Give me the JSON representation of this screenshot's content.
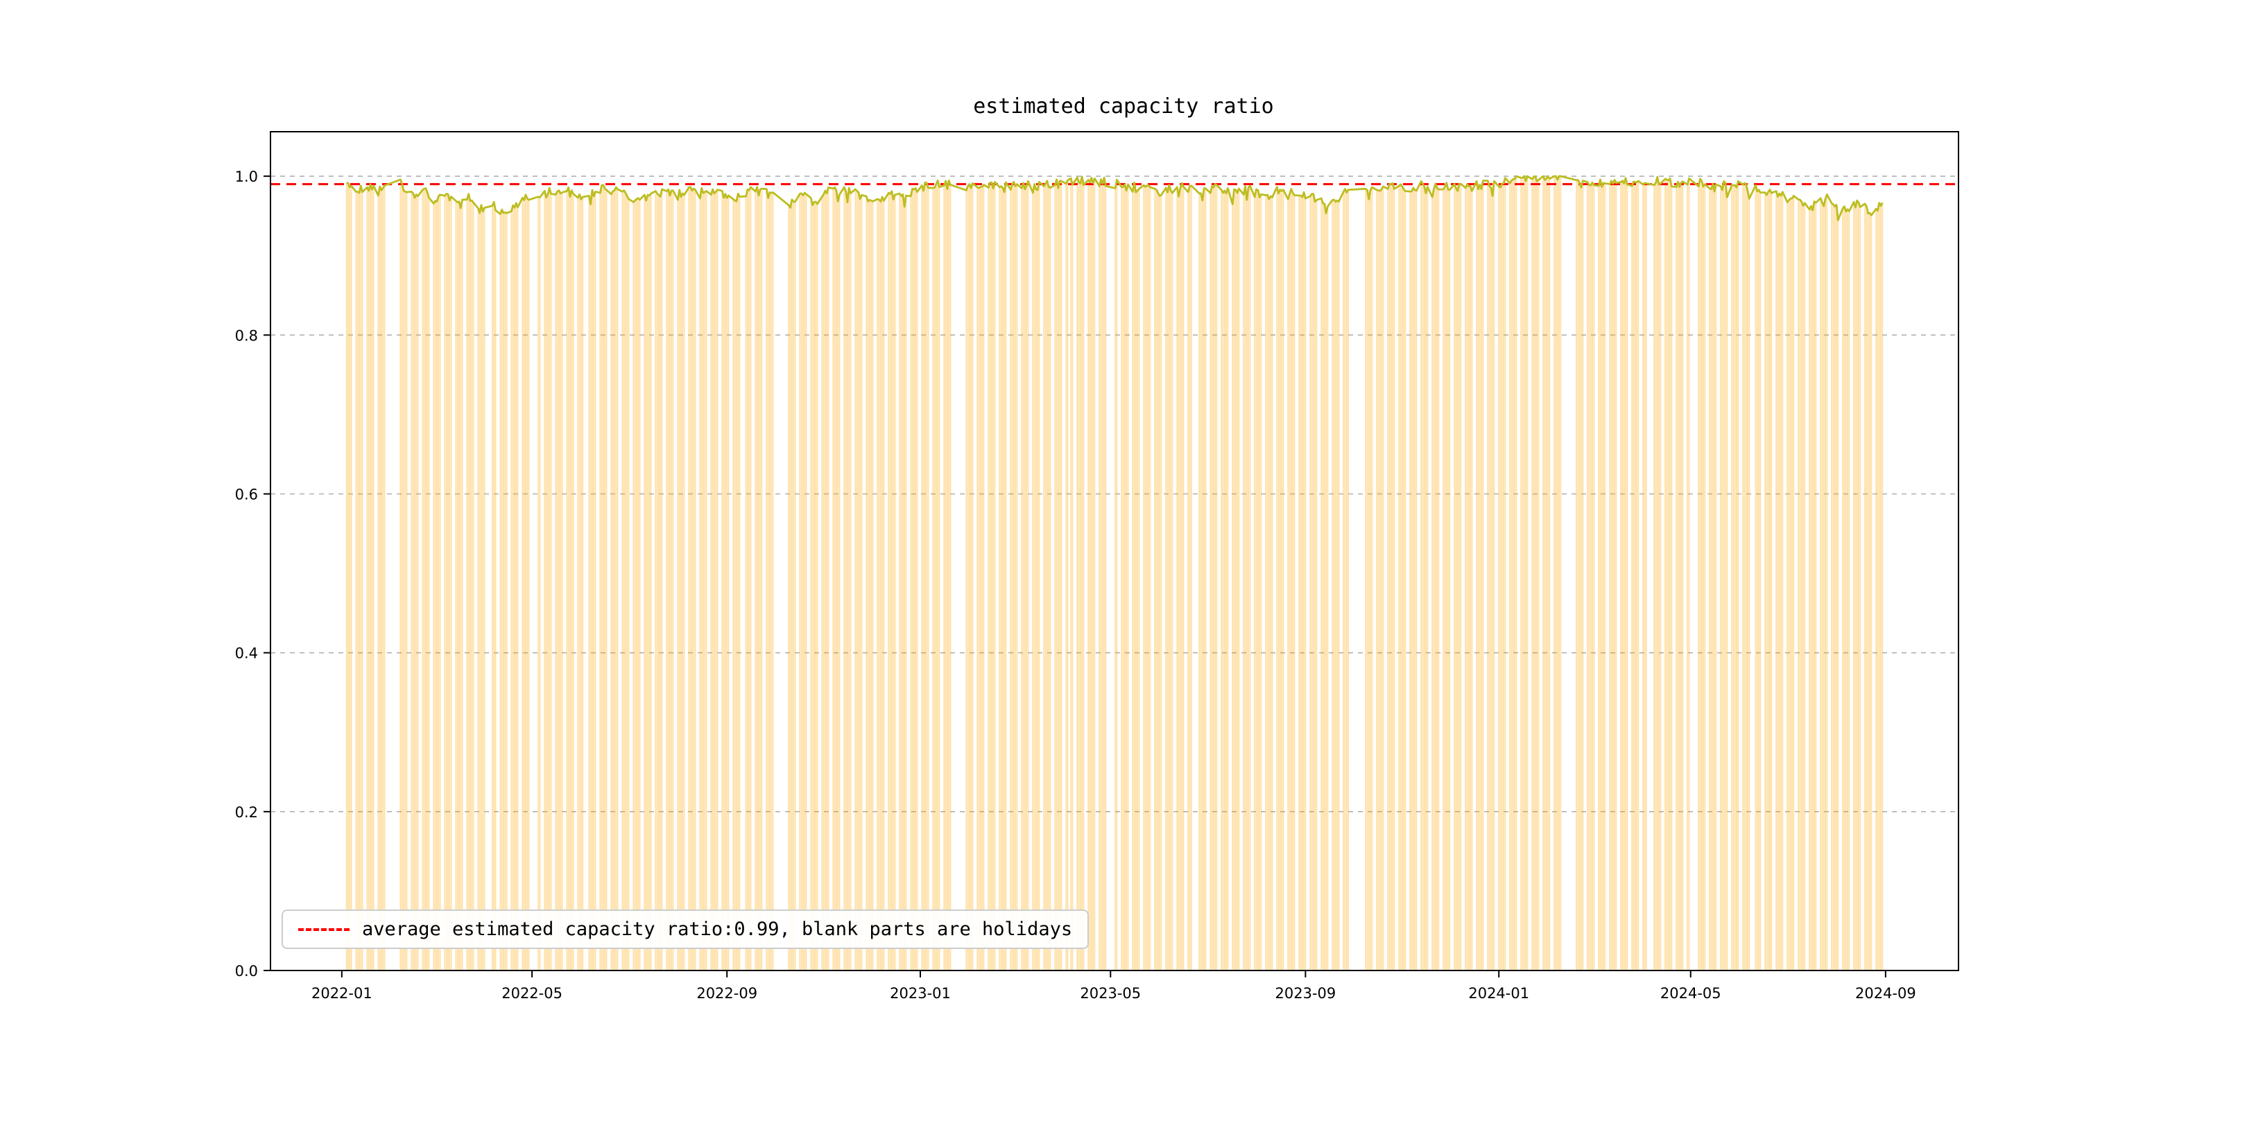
{
  "figure": {
    "background": "#ffffff"
  },
  "chart_data": {
    "type": "bar",
    "title": "estimated capacity ratio",
    "series_name": "estimated capacity ratio",
    "legend": {
      "position": "lower left",
      "entries": [
        {
          "label": "average estimated capacity ratio:0.99, blank parts are holidays",
          "symbol": "dashed-line",
          "color": "#ff0000"
        }
      ]
    },
    "average_line": {
      "value": 0.99,
      "color": "#ff0000",
      "style": "dashed"
    },
    "x_axis": {
      "domain": [
        "2021-11-17",
        "2024-10-17"
      ],
      "ticks": [
        {
          "date": "2022-01-01",
          "label": "2022-01"
        },
        {
          "date": "2022-05-01",
          "label": "2022-05"
        },
        {
          "date": "2022-09-01",
          "label": "2022-09"
        },
        {
          "date": "2023-01-01",
          "label": "2023-01"
        },
        {
          "date": "2023-05-01",
          "label": "2023-05"
        },
        {
          "date": "2023-09-01",
          "label": "2023-09"
        },
        {
          "date": "2024-01-01",
          "label": "2024-01"
        },
        {
          "date": "2024-05-01",
          "label": "2024-05"
        },
        {
          "date": "2024-09-01",
          "label": "2024-09"
        }
      ]
    },
    "y_axis": {
      "range": [
        0,
        1.056
      ],
      "ticks": [
        0.0,
        0.2,
        0.4,
        0.6,
        0.8,
        1.0
      ],
      "tick_labels": [
        "0.0",
        "0.2",
        "0.4",
        "0.6",
        "0.8",
        "1.0"
      ],
      "grid": "dashed"
    },
    "series_start": "2022-01-04",
    "series_end": "2024-08-30",
    "weekends_excluded": true,
    "holidays": [
      [
        "2022-01-31",
        "2022-02-04"
      ],
      [
        "2022-04-04",
        "2022-04-05"
      ],
      [
        "2022-05-02",
        "2022-05-04"
      ],
      [
        "2022-06-03",
        "2022-06-03"
      ],
      [
        "2022-09-12",
        "2022-09-12"
      ],
      [
        "2022-10-03",
        "2022-10-07"
      ],
      [
        "2023-01-23",
        "2023-01-27"
      ],
      [
        "2023-04-05",
        "2023-04-05"
      ],
      [
        "2023-05-01",
        "2023-05-03"
      ],
      [
        "2023-06-22",
        "2023-06-23"
      ],
      [
        "2023-09-29",
        "2023-10-06"
      ],
      [
        "2024-02-12",
        "2024-02-16"
      ],
      [
        "2024-04-04",
        "2024-04-05"
      ],
      [
        "2024-05-01",
        "2024-05-03"
      ],
      [
        "2024-06-10",
        "2024-06-10"
      ]
    ],
    "line_anchors": [
      [
        "2022-01-04",
        0.99
      ],
      [
        "2022-01-14",
        0.984
      ],
      [
        "2022-01-28",
        0.988
      ],
      [
        "2022-02-07",
        0.99
      ],
      [
        "2022-02-14",
        0.976
      ],
      [
        "2022-02-21",
        0.984
      ],
      [
        "2022-03-01",
        0.968
      ],
      [
        "2022-03-08",
        0.978
      ],
      [
        "2022-03-15",
        0.962
      ],
      [
        "2022-03-22",
        0.975
      ],
      [
        "2022-03-29",
        0.958
      ],
      [
        "2022-04-06",
        0.968
      ],
      [
        "2022-04-13",
        0.95
      ],
      [
        "2022-04-20",
        0.96
      ],
      [
        "2022-04-27",
        0.972
      ],
      [
        "2022-05-09",
        0.978
      ],
      [
        "2022-05-20",
        0.983
      ],
      [
        "2022-06-01",
        0.975
      ],
      [
        "2022-06-15",
        0.984
      ],
      [
        "2022-06-28",
        0.978
      ],
      [
        "2022-07-08",
        0.97
      ],
      [
        "2022-07-20",
        0.98
      ],
      [
        "2022-08-01",
        0.976
      ],
      [
        "2022-08-12",
        0.984
      ],
      [
        "2022-08-24",
        0.98
      ],
      [
        "2022-09-05",
        0.972
      ],
      [
        "2022-09-16",
        0.982
      ],
      [
        "2022-09-28",
        0.978
      ],
      [
        "2022-10-10",
        0.962
      ],
      [
        "2022-10-18",
        0.975
      ],
      [
        "2022-10-26",
        0.968
      ],
      [
        "2022-11-04",
        0.98
      ],
      [
        "2022-11-15",
        0.984
      ],
      [
        "2022-11-24",
        0.976
      ],
      [
        "2022-12-05",
        0.97
      ],
      [
        "2022-12-14",
        0.977
      ],
      [
        "2022-12-23",
        0.974
      ],
      [
        "2023-01-03",
        0.986
      ],
      [
        "2023-01-13",
        0.99
      ],
      [
        "2023-01-30",
        0.988
      ],
      [
        "2023-02-10",
        0.99
      ],
      [
        "2023-02-21",
        0.986
      ],
      [
        "2023-03-03",
        0.99
      ],
      [
        "2023-03-15",
        0.987
      ],
      [
        "2023-03-27",
        0.99
      ],
      [
        "2023-04-07",
        0.992
      ],
      [
        "2023-04-18",
        0.995
      ],
      [
        "2023-04-28",
        0.992
      ],
      [
        "2023-05-10",
        0.988
      ],
      [
        "2023-05-22",
        0.984
      ],
      [
        "2023-06-01",
        0.98
      ],
      [
        "2023-06-13",
        0.986
      ],
      [
        "2023-06-26",
        0.982
      ],
      [
        "2023-07-06",
        0.985
      ],
      [
        "2023-07-17",
        0.978
      ],
      [
        "2023-07-27",
        0.983
      ],
      [
        "2023-08-07",
        0.974
      ],
      [
        "2023-08-17",
        0.984
      ],
      [
        "2023-08-28",
        0.979
      ],
      [
        "2023-09-06",
        0.972
      ],
      [
        "2023-09-15",
        0.964
      ],
      [
        "2023-09-25",
        0.978
      ],
      [
        "2023-10-12",
        0.985
      ],
      [
        "2023-10-24",
        0.99
      ],
      [
        "2023-11-06",
        0.986
      ],
      [
        "2023-11-17",
        0.991
      ],
      [
        "2023-11-29",
        0.987
      ],
      [
        "2023-12-11",
        0.984
      ],
      [
        "2023-12-22",
        0.99
      ],
      [
        "2024-01-04",
        0.992
      ],
      [
        "2024-01-16",
        0.996
      ],
      [
        "2024-01-26",
        1.0
      ],
      [
        "2024-02-06",
        0.999
      ],
      [
        "2024-02-23",
        0.996
      ],
      [
        "2024-03-06",
        0.991
      ],
      [
        "2024-03-18",
        0.994
      ],
      [
        "2024-03-29",
        0.99
      ],
      [
        "2024-04-10",
        0.995
      ],
      [
        "2024-04-23",
        0.991
      ],
      [
        "2024-05-08",
        0.992
      ],
      [
        "2024-05-20",
        0.987
      ],
      [
        "2024-05-31",
        0.991
      ],
      [
        "2024-06-12",
        0.984
      ],
      [
        "2024-06-24",
        0.978
      ],
      [
        "2024-07-05",
        0.97
      ],
      [
        "2024-07-16",
        0.962
      ],
      [
        "2024-07-26",
        0.972
      ],
      [
        "2024-08-06",
        0.958
      ],
      [
        "2024-08-15",
        0.968
      ],
      [
        "2024-08-23",
        0.952
      ],
      [
        "2024-08-30",
        0.965
      ]
    ],
    "noise": {
      "seed": 42,
      "jitter": 0.006,
      "dip_prob": 0.07,
      "dip_depth": 0.018
    },
    "colors": {
      "bar": "#ffa500",
      "bar_opacity": 0.35,
      "line": "#bcbd22",
      "grid": "#b0b0b0",
      "axes_border": "#000000",
      "tick_text": "#000000"
    }
  }
}
